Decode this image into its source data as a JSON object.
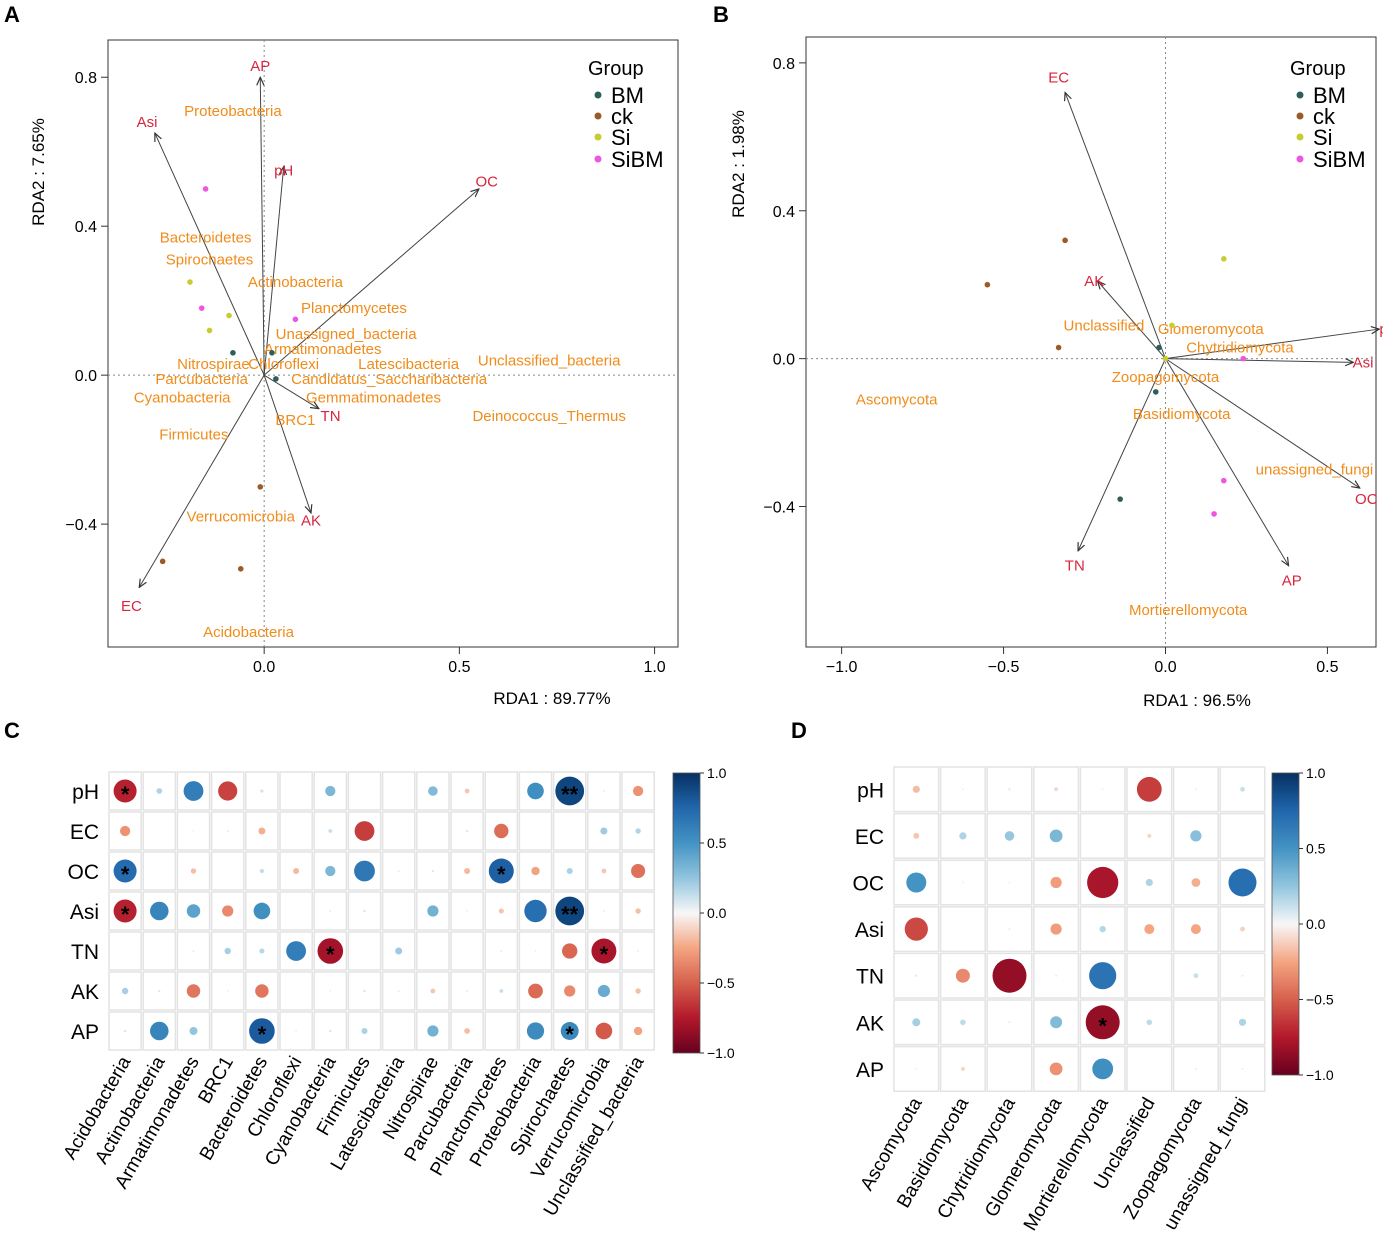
{
  "panel_labels": {
    "a": "A",
    "b": "B",
    "c": "C",
    "d": "D"
  },
  "colors": {
    "BM": "#2e5e5a",
    "ck": "#9c5a28",
    "Si": "#c8cc2e",
    "SiBM": "#ee55e0",
    "vector": "#d7263d",
    "taxon": "#f08c1a"
  },
  "chart_data": [
    {
      "panel": "A",
      "type": "scatter",
      "xlabel": "RDA1 : 89.77%",
      "ylabel": "RDA2 : 7.65%",
      "xlim": [
        -0.4,
        1.06
      ],
      "ylim": [
        -0.73,
        0.9
      ],
      "xticks": [
        0.0,
        0.5,
        1.0
      ],
      "yticks": [
        -0.4,
        0.0,
        0.4,
        0.8
      ],
      "xtick_labels": [
        "0.0",
        "0.5",
        "1.0"
      ],
      "ytick_labels": [
        "−0.4",
        "0.0",
        "0.4",
        "0.8"
      ],
      "legend": {
        "title": "Group",
        "entries": [
          "BM",
          "ck",
          "Si",
          "SiBM"
        ],
        "position": "top-right"
      },
      "points": [
        {
          "group": "BM",
          "x": -0.08,
          "y": 0.06
        },
        {
          "group": "BM",
          "x": 0.02,
          "y": 0.06
        },
        {
          "group": "BM",
          "x": 0.03,
          "y": -0.01
        },
        {
          "group": "ck",
          "x": -0.01,
          "y": -0.3
        },
        {
          "group": "ck",
          "x": -0.26,
          "y": -0.5
        },
        {
          "group": "ck",
          "x": -0.06,
          "y": -0.52
        },
        {
          "group": "Si",
          "x": -0.19,
          "y": 0.25
        },
        {
          "group": "Si",
          "x": -0.09,
          "y": 0.16
        },
        {
          "group": "Si",
          "x": -0.14,
          "y": 0.12
        },
        {
          "group": "SiBM",
          "x": -0.15,
          "y": 0.5
        },
        {
          "group": "SiBM",
          "x": -0.16,
          "y": 0.18
        },
        {
          "group": "SiBM",
          "x": 0.08,
          "y": 0.15
        }
      ],
      "vectors": [
        {
          "label": "AP",
          "x": -0.01,
          "y": 0.8,
          "lx": -0.01,
          "ly": 0.83
        },
        {
          "label": "Asi",
          "x": -0.28,
          "y": 0.65,
          "lx": -0.3,
          "ly": 0.68
        },
        {
          "label": "pH",
          "x": 0.05,
          "y": 0.56,
          "lx": 0.05,
          "ly": 0.55
        },
        {
          "label": "OC",
          "x": 0.55,
          "y": 0.5,
          "lx": 0.57,
          "ly": 0.52
        },
        {
          "label": "TN",
          "x": 0.14,
          "y": -0.09,
          "lx": 0.17,
          "ly": -0.11
        },
        {
          "label": "AK",
          "x": 0.12,
          "y": -0.37,
          "lx": 0.12,
          "ly": -0.39
        },
        {
          "label": "EC",
          "x": -0.32,
          "y": -0.57,
          "lx": -0.34,
          "ly": -0.62
        }
      ],
      "taxa": [
        {
          "label": "Proteobacteria",
          "x": -0.08,
          "y": 0.71
        },
        {
          "label": "Bacteroidetes",
          "x": -0.15,
          "y": 0.37
        },
        {
          "label": "Spirochaetes",
          "x": -0.14,
          "y": 0.31
        },
        {
          "label": "Actinobacteria",
          "x": 0.08,
          "y": 0.25
        },
        {
          "label": "Planctomycetes",
          "x": 0.23,
          "y": 0.18
        },
        {
          "label": "Unassigned_bacteria",
          "x": 0.21,
          "y": 0.11
        },
        {
          "label": "Armatimonadetes",
          "x": 0.15,
          "y": 0.07
        },
        {
          "label": "Chloroflexi",
          "x": 0.05,
          "y": 0.03
        },
        {
          "label": "Latescibacteria",
          "x": 0.37,
          "y": 0.03
        },
        {
          "label": "Unclassified_bacteria",
          "x": 0.73,
          "y": 0.04
        },
        {
          "label": "Nitrospirae",
          "x": -0.13,
          "y": 0.03
        },
        {
          "label": "Parcubacteria",
          "x": -0.16,
          "y": -0.01
        },
        {
          "label": "Candidatus_Saccharibacteria",
          "x": 0.32,
          "y": -0.01
        },
        {
          "label": "Cyanobacteria",
          "x": -0.21,
          "y": -0.06
        },
        {
          "label": "Gemmatimonadetes",
          "x": 0.28,
          "y": -0.06
        },
        {
          "label": "BRC1",
          "x": 0.08,
          "y": -0.12
        },
        {
          "label": "Deinococcus_Thermus",
          "x": 0.73,
          "y": -0.11
        },
        {
          "label": "Firmicutes",
          "x": -0.18,
          "y": -0.16
        },
        {
          "label": "Verrucomicrobia",
          "x": -0.06,
          "y": -0.38
        },
        {
          "label": "Acidobacteria",
          "x": -0.04,
          "y": -0.69
        }
      ]
    },
    {
      "panel": "B",
      "type": "scatter",
      "xlabel": "RDA1 : 96.5%",
      "ylabel": "RDA2 : 1.98%",
      "xlim": [
        -1.11,
        0.65
      ],
      "ylim": [
        -0.78,
        0.87
      ],
      "xticks": [
        -1.0,
        -0.5,
        0.0,
        0.5
      ],
      "yticks": [
        -0.4,
        0.0,
        0.4,
        0.8
      ],
      "xtick_labels": [
        "−1.0",
        "−0.5",
        "0.0",
        "0.5"
      ],
      "ytick_labels": [
        "−0.4",
        "0.0",
        "0.4",
        "0.8"
      ],
      "legend": {
        "title": "Group",
        "entries": [
          "BM",
          "ck",
          "Si",
          "SiBM"
        ],
        "position": "top-right"
      },
      "points": [
        {
          "group": "BM",
          "x": -0.02,
          "y": 0.03
        },
        {
          "group": "BM",
          "x": -0.03,
          "y": -0.09
        },
        {
          "group": "BM",
          "x": -0.14,
          "y": -0.38
        },
        {
          "group": "ck",
          "x": -0.31,
          "y": 0.32
        },
        {
          "group": "ck",
          "x": -0.55,
          "y": 0.2
        },
        {
          "group": "ck",
          "x": -0.33,
          "y": 0.03
        },
        {
          "group": "Si",
          "x": 0.18,
          "y": 0.27
        },
        {
          "group": "Si",
          "x": 0.02,
          "y": 0.09
        },
        {
          "group": "Si",
          "x": 0.0,
          "y": 0.0
        },
        {
          "group": "SiBM",
          "x": 0.24,
          "y": 0.0
        },
        {
          "group": "SiBM",
          "x": 0.18,
          "y": -0.33
        },
        {
          "group": "SiBM",
          "x": 0.15,
          "y": -0.42
        }
      ],
      "vectors": [
        {
          "label": "EC",
          "x": -0.31,
          "y": 0.72,
          "lx": -0.33,
          "ly": 0.76
        },
        {
          "label": "AK",
          "x": -0.21,
          "y": 0.21,
          "lx": -0.22,
          "ly": 0.21
        },
        {
          "label": "pH",
          "x": 0.66,
          "y": 0.08,
          "lx": 0.69,
          "ly": 0.08
        },
        {
          "label": "Asi",
          "x": 0.58,
          "y": -0.01,
          "lx": 0.61,
          "ly": -0.01
        },
        {
          "label": "OC",
          "x": 0.6,
          "y": -0.35,
          "lx": 0.62,
          "ly": -0.38
        },
        {
          "label": "AP",
          "x": 0.38,
          "y": -0.56,
          "lx": 0.39,
          "ly": -0.6
        },
        {
          "label": "TN",
          "x": -0.27,
          "y": -0.52,
          "lx": -0.28,
          "ly": -0.56
        }
      ],
      "taxa": [
        {
          "label": "Unclassified",
          "x": -0.19,
          "y": 0.09
        },
        {
          "label": "Glomeromycota",
          "x": 0.14,
          "y": 0.08
        },
        {
          "label": "Chytridiomycota",
          "x": 0.23,
          "y": 0.03
        },
        {
          "label": "Zoopagomycota",
          "x": 0.0,
          "y": -0.05
        },
        {
          "label": "Ascomycota",
          "x": -0.83,
          "y": -0.11
        },
        {
          "label": "Basidiomycota",
          "x": 0.05,
          "y": -0.15
        },
        {
          "label": "unassigned_fungi",
          "x": 0.46,
          "y": -0.3
        },
        {
          "label": "Mortierellomycota",
          "x": 0.07,
          "y": -0.68
        }
      ]
    },
    {
      "panel": "C",
      "type": "heatmap",
      "rows": [
        "pH",
        "EC",
        "OC",
        "Asi",
        "TN",
        "AK",
        "AP"
      ],
      "columns": [
        "Acidobacteria",
        "Actinobacteria",
        "Armatimonadetes",
        "BRC1",
        "Bacteroidetes",
        "Chloroflexi",
        "Cyanobacteria",
        "Firmicutes",
        "Latescibacteria",
        "Nitrospirae",
        "Parcubacteria",
        "Planctomycetes",
        "Proteobacteria",
        "Spirochaetes",
        "Verrucomicrobia",
        "Unclassified_bacteria"
      ],
      "values": [
        [
          -0.72,
          0.18,
          0.62,
          -0.6,
          0.1,
          0.0,
          0.32,
          0.0,
          0.0,
          0.3,
          -0.15,
          0.0,
          0.52,
          0.9,
          0.04,
          -0.32
        ],
        [
          -0.32,
          0.0,
          0.02,
          -0.06,
          -0.22,
          0.0,
          0.12,
          -0.62,
          0.0,
          0.0,
          0.07,
          -0.45,
          0.0,
          0.0,
          0.22,
          0.17
        ],
        [
          0.72,
          0.0,
          -0.17,
          0.0,
          0.13,
          -0.19,
          0.32,
          0.65,
          -0.05,
          -0.07,
          -0.19,
          0.78,
          -0.26,
          0.19,
          -0.15,
          -0.44
        ],
        [
          -0.72,
          0.58,
          0.42,
          -0.35,
          0.52,
          0.0,
          0.04,
          0.08,
          0.0,
          0.35,
          0.02,
          -0.16,
          0.7,
          0.9,
          0.05,
          -0.17
        ],
        [
          0.0,
          0.0,
          0.05,
          0.2,
          0.16,
          0.62,
          -0.8,
          0.0,
          0.22,
          0.0,
          0.0,
          0.06,
          -0.04,
          -0.48,
          -0.78,
          0.04
        ],
        [
          0.2,
          -0.07,
          -0.42,
          0.02,
          -0.42,
          0.0,
          0.02,
          -0.08,
          0.05,
          -0.15,
          -0.06,
          0.12,
          -0.46,
          -0.35,
          0.38,
          -0.17
        ],
        [
          -0.08,
          0.58,
          0.25,
          0.0,
          0.8,
          0.02,
          -0.08,
          0.19,
          0.0,
          0.35,
          -0.18,
          0.0,
          0.54,
          0.56,
          -0.52,
          -0.26
        ]
      ],
      "stars": [
        {
          "row": 0,
          "col": 0,
          "text": "*"
        },
        {
          "row": 0,
          "col": 13,
          "text": "**"
        },
        {
          "row": 2,
          "col": 0,
          "text": "*"
        },
        {
          "row": 2,
          "col": 11,
          "text": "*"
        },
        {
          "row": 3,
          "col": 0,
          "text": "*"
        },
        {
          "row": 3,
          "col": 13,
          "text": "**"
        },
        {
          "row": 4,
          "col": 6,
          "text": "*"
        },
        {
          "row": 4,
          "col": 14,
          "text": "*"
        },
        {
          "row": 6,
          "col": 4,
          "text": "*"
        },
        {
          "row": 6,
          "col": 13,
          "text": "*"
        }
      ],
      "colorbar_ticks": [
        "1.0",
        "0.5",
        "0.0",
        "−0.5",
        "−1.0"
      ]
    },
    {
      "panel": "D",
      "type": "heatmap",
      "rows": [
        "pH",
        "EC",
        "OC",
        "Asi",
        "TN",
        "AK",
        "AP"
      ],
      "columns": [
        "Ascomycota",
        "Basidiomycota",
        "Chytridiomycota",
        "Glomeromycota",
        "Mortierellomycota",
        "Unclassified",
        "Zoopagomycota",
        "unassigned_fungi"
      ],
      "values": [
        [
          -0.18,
          0.02,
          0.06,
          -0.1,
          0.02,
          -0.62,
          -0.05,
          0.12
        ],
        [
          -0.15,
          0.18,
          0.24,
          0.32,
          0.0,
          -0.1,
          0.28,
          0.0
        ],
        [
          0.5,
          -0.02,
          0.03,
          -0.28,
          -0.78,
          0.18,
          -0.22,
          0.7
        ],
        [
          -0.58,
          0.0,
          0.05,
          -0.28,
          0.16,
          -0.25,
          -0.25,
          -0.12
        ],
        [
          0.06,
          -0.35,
          -0.85,
          0.05,
          0.68,
          0.0,
          0.12,
          0.05
        ],
        [
          0.2,
          0.14,
          0.05,
          0.3,
          -0.85,
          0.14,
          0.0,
          0.18
        ],
        [
          0.02,
          -0.1,
          0.0,
          -0.32,
          0.52,
          0.0,
          -0.05,
          -0.04
        ]
      ],
      "stars": [
        {
          "row": 5,
          "col": 4,
          "text": "*"
        }
      ],
      "colorbar_ticks": [
        "1.0",
        "0.5",
        "0.0",
        "−0.5",
        "−1.0"
      ]
    }
  ]
}
